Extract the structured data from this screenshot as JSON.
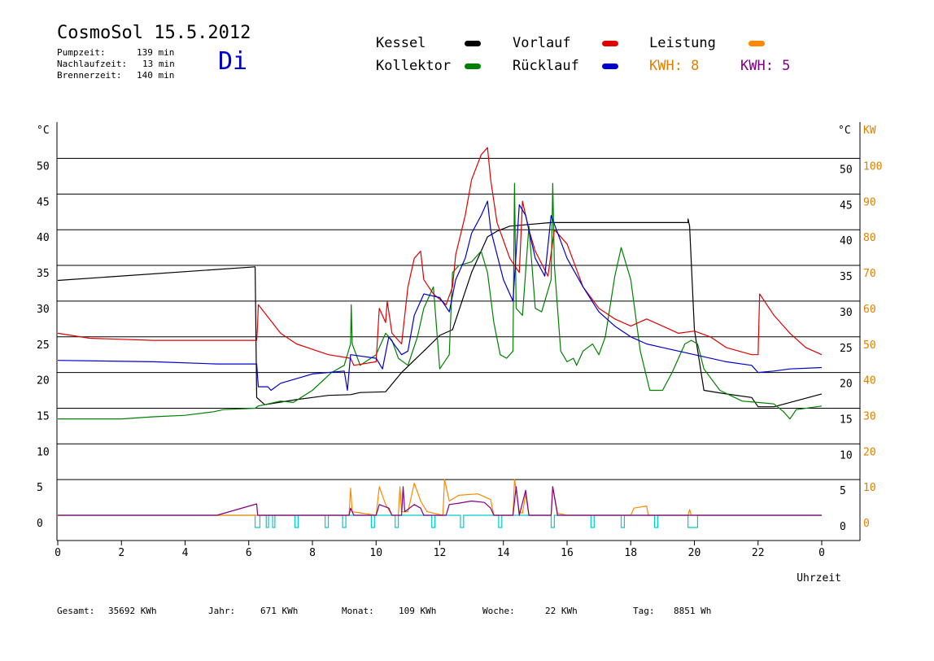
{
  "header": {
    "title": "CosmoSol 15.5.2012",
    "pump_label": "Pumpzeit:",
    "pump_value": "139 min",
    "run_label": "Nachlaufzeit:",
    "run_value": "13 min",
    "burner_label": "Brennerzeit:",
    "burner_value": "140 min",
    "day": "Di"
  },
  "legend": {
    "kessel": "Kessel",
    "kollektor": "Kollektor",
    "vorlauf": "Vorlauf",
    "ruecklauf": "Rücklauf",
    "leistung": "Leistung",
    "kwh1": "KWH: 8",
    "kwh2": "KWH: 5"
  },
  "footer": {
    "gesamt_label": "Gesamt:",
    "gesamt_value": "35692 KWh",
    "jahr_label": "Jahr:",
    "jahr_value": "671 KWh",
    "monat_label": "Monat:",
    "monat_value": "109 KWh",
    "woche_label": "Woche:",
    "woche_value": "22 KWh",
    "tag_label": "Tag:",
    "tag_value": "8851 Wh"
  },
  "chart_data": {
    "type": "line",
    "xlabel": "Uhrzeit",
    "ylabel_left": "°C",
    "ylabel_right_1": "°C",
    "ylabel_right_2": "KW",
    "xlim": [
      0,
      24
    ],
    "ylim": [
      -3.5,
      55
    ],
    "grid": true,
    "x_ticks": [
      "0",
      "2",
      "4",
      "6",
      "8",
      "10",
      "12",
      "14",
      "16",
      "18",
      "20",
      "22",
      "0"
    ],
    "y_ticks": [
      0,
      5,
      10,
      15,
      20,
      25,
      30,
      35,
      40,
      45,
      50
    ],
    "y_ticks_kw": [
      0,
      10,
      20,
      30,
      40,
      50,
      60,
      70,
      80,
      90,
      100
    ],
    "colors": {
      "kessel": "#000000",
      "kollektor": "#008000",
      "vorlauf": "#e00000",
      "ruecklauf": "#0000cc",
      "leistung": "#ff8800",
      "kwh2": "#800080",
      "pump": "#00cccc"
    },
    "series": [
      {
        "name": "Kessel",
        "color_key": "kessel",
        "points": [
          [
            0,
            32.9
          ],
          [
            6.2,
            34.8
          ],
          [
            6.25,
            16.5
          ],
          [
            6.5,
            15.5
          ],
          [
            7.5,
            16.2
          ],
          [
            8.5,
            16.8
          ],
          [
            9.2,
            16.9
          ],
          [
            9.5,
            17.2
          ],
          [
            10.3,
            17.3
          ],
          [
            10.8,
            20
          ],
          [
            11.5,
            23
          ],
          [
            12,
            25.2
          ],
          [
            12.4,
            26
          ],
          [
            13,
            34
          ],
          [
            13.5,
            39
          ],
          [
            13.8,
            39.8
          ],
          [
            14.2,
            40.5
          ],
          [
            15.5,
            41
          ],
          [
            19.8,
            41
          ],
          [
            19.8,
            41.5
          ],
          [
            19.85,
            40.5
          ],
          [
            20,
            26
          ],
          [
            20.3,
            17.5
          ],
          [
            21,
            17
          ],
          [
            21.8,
            16.5
          ],
          [
            22,
            15.2
          ],
          [
            22.5,
            15.2
          ],
          [
            23,
            15.8
          ],
          [
            24,
            17
          ]
        ]
      },
      {
        "name": "Kollektor",
        "color_key": "kollektor",
        "points": [
          [
            0,
            13.5
          ],
          [
            2,
            13.5
          ],
          [
            3,
            13.8
          ],
          [
            4,
            14
          ],
          [
            4.9,
            14.5
          ],
          [
            5.2,
            14.8
          ],
          [
            6.2,
            15
          ],
          [
            6.3,
            15.3
          ],
          [
            7,
            16
          ],
          [
            7.4,
            15.8
          ],
          [
            8,
            17.5
          ],
          [
            8.6,
            20
          ],
          [
            9,
            21
          ],
          [
            9.2,
            24
          ],
          [
            9.22,
            29.5
          ],
          [
            9.25,
            24
          ],
          [
            9.5,
            21
          ],
          [
            10,
            22.5
          ],
          [
            10.1,
            23.5
          ],
          [
            10.3,
            25.5
          ],
          [
            10.5,
            24.5
          ],
          [
            10.7,
            22
          ],
          [
            11,
            21
          ],
          [
            11.3,
            25
          ],
          [
            11.5,
            29
          ],
          [
            11.8,
            32
          ],
          [
            12,
            20.5
          ],
          [
            12.3,
            22.5
          ],
          [
            12.4,
            34
          ],
          [
            12.6,
            35
          ],
          [
            13,
            35.5
          ],
          [
            13.3,
            37
          ],
          [
            13.5,
            34
          ],
          [
            13.7,
            27
          ],
          [
            13.9,
            22.5
          ],
          [
            14.1,
            22
          ],
          [
            14.3,
            23
          ],
          [
            14.35,
            46.5
          ],
          [
            14.4,
            29
          ],
          [
            14.6,
            28
          ],
          [
            14.8,
            40.5
          ],
          [
            15.0,
            29
          ],
          [
            15.2,
            28.5
          ],
          [
            15.5,
            33
          ],
          [
            15.55,
            46.5
          ],
          [
            15.6,
            35
          ],
          [
            15.8,
            23
          ],
          [
            16,
            21.5
          ],
          [
            16.2,
            22
          ],
          [
            16.3,
            21
          ],
          [
            16.5,
            23
          ],
          [
            16.8,
            24
          ],
          [
            17,
            22.5
          ],
          [
            17.2,
            25
          ],
          [
            17.5,
            33.5
          ],
          [
            17.7,
            37.5
          ],
          [
            18,
            33
          ],
          [
            18.3,
            23
          ],
          [
            18.6,
            17.5
          ],
          [
            19,
            17.5
          ],
          [
            19.3,
            20
          ],
          [
            19.7,
            24
          ],
          [
            19.9,
            24.5
          ],
          [
            20.1,
            24
          ],
          [
            20.3,
            20.5
          ],
          [
            20.8,
            17.5
          ],
          [
            21.5,
            16
          ],
          [
            22,
            15.8
          ],
          [
            22.5,
            15.6
          ],
          [
            22.8,
            14.5
          ],
          [
            23,
            13.5
          ],
          [
            23.2,
            14.8
          ],
          [
            24,
            15.3
          ]
        ]
      },
      {
        "name": "Vorlauf",
        "color_key": "vorlauf",
        "points": [
          [
            0,
            25.5
          ],
          [
            1,
            24.8
          ],
          [
            3,
            24.5
          ],
          [
            6.25,
            24.5
          ],
          [
            6.27,
            26
          ],
          [
            6.3,
            29.5
          ],
          [
            7,
            25.5
          ],
          [
            7.5,
            24
          ],
          [
            8.5,
            22.5
          ],
          [
            9.2,
            22
          ],
          [
            9.3,
            21
          ],
          [
            10,
            21.5
          ],
          [
            10.1,
            29
          ],
          [
            10.3,
            27
          ],
          [
            10.35,
            30
          ],
          [
            10.5,
            25.5
          ],
          [
            10.8,
            24
          ],
          [
            11,
            32
          ],
          [
            11.2,
            36
          ],
          [
            11.4,
            37
          ],
          [
            11.5,
            33
          ],
          [
            11.8,
            31
          ],
          [
            12.2,
            29.5
          ],
          [
            12.4,
            32
          ],
          [
            12.5,
            36.5
          ],
          [
            12.8,
            42
          ],
          [
            13,
            47
          ],
          [
            13.3,
            50.5
          ],
          [
            13.5,
            51.5
          ],
          [
            13.6,
            47
          ],
          [
            13.8,
            41
          ],
          [
            14.2,
            36
          ],
          [
            14.5,
            34
          ],
          [
            14.6,
            44
          ],
          [
            14.8,
            40
          ],
          [
            15,
            37
          ],
          [
            15.4,
            33.5
          ],
          [
            15.6,
            40
          ],
          [
            16,
            38
          ],
          [
            16.5,
            32
          ],
          [
            17,
            29
          ],
          [
            17.5,
            27.5
          ],
          [
            18,
            26.5
          ],
          [
            18.5,
            27.5
          ],
          [
            19,
            26.5
          ],
          [
            19.5,
            25.5
          ],
          [
            20,
            25.8
          ],
          [
            20.5,
            25
          ],
          [
            21,
            23.5
          ],
          [
            21.8,
            22.5
          ],
          [
            22,
            22.5
          ],
          [
            22.05,
            31
          ],
          [
            22.5,
            28
          ],
          [
            23,
            25.5
          ],
          [
            23.5,
            23.5
          ],
          [
            24,
            22.5
          ]
        ]
      },
      {
        "name": "Rücklauf",
        "color_key": "ruecklauf",
        "points": [
          [
            0,
            21.7
          ],
          [
            3,
            21.5
          ],
          [
            5,
            21.2
          ],
          [
            6.25,
            21.2
          ],
          [
            6.3,
            18
          ],
          [
            6.6,
            18
          ],
          [
            6.7,
            17.5
          ],
          [
            7,
            18.5
          ],
          [
            8,
            19.8
          ],
          [
            9,
            20.2
          ],
          [
            9.1,
            17.5
          ],
          [
            9.2,
            22.5
          ],
          [
            10,
            22
          ],
          [
            10.2,
            20.5
          ],
          [
            10.4,
            25
          ],
          [
            10.8,
            22.5
          ],
          [
            11,
            23
          ],
          [
            11.2,
            28
          ],
          [
            11.5,
            31
          ],
          [
            12,
            30.5
          ],
          [
            12.3,
            28.5
          ],
          [
            12.5,
            33
          ],
          [
            12.8,
            36
          ],
          [
            13,
            39.5
          ],
          [
            13.3,
            42
          ],
          [
            13.5,
            44
          ],
          [
            13.6,
            40
          ],
          [
            14,
            33
          ],
          [
            14.3,
            30
          ],
          [
            14.5,
            43.5
          ],
          [
            14.7,
            42
          ],
          [
            15,
            36
          ],
          [
            15.3,
            33.5
          ],
          [
            15.5,
            42
          ],
          [
            16,
            36
          ],
          [
            16.5,
            32
          ],
          [
            17,
            28.5
          ],
          [
            17.5,
            26.5
          ],
          [
            18,
            25
          ],
          [
            18.5,
            24
          ],
          [
            19,
            23.5
          ],
          [
            20,
            22.5
          ],
          [
            21,
            21.5
          ],
          [
            21.8,
            21
          ],
          [
            22,
            20
          ],
          [
            22.5,
            20.2
          ],
          [
            23,
            20.5
          ],
          [
            24,
            20.7
          ]
        ]
      },
      {
        "name": "Leistung",
        "color_key": "leistung",
        "points": [
          [
            0,
            0
          ],
          [
            9.15,
            0
          ],
          [
            9.2,
            3.8
          ],
          [
            9.25,
            0.5
          ],
          [
            10,
            0
          ],
          [
            10.1,
            4
          ],
          [
            10.3,
            1.5
          ],
          [
            10.5,
            0
          ],
          [
            10.7,
            0
          ],
          [
            10.75,
            4
          ],
          [
            10.8,
            0.5
          ],
          [
            11,
            0.5
          ],
          [
            11.1,
            2.5
          ],
          [
            11.2,
            4.5
          ],
          [
            11.4,
            2
          ],
          [
            11.6,
            0.5
          ],
          [
            12.1,
            0
          ],
          [
            12.15,
            5
          ],
          [
            12.3,
            2
          ],
          [
            12.6,
            2.8
          ],
          [
            13.2,
            3
          ],
          [
            13.6,
            2.2
          ],
          [
            13.7,
            0
          ],
          [
            14.3,
            0
          ],
          [
            14.35,
            5
          ],
          [
            14.5,
            0.5
          ],
          [
            14.6,
            0.3
          ],
          [
            14.7,
            3
          ],
          [
            14.8,
            0
          ],
          [
            15.5,
            0
          ],
          [
            15.55,
            4
          ],
          [
            15.7,
            0.3
          ],
          [
            16,
            0
          ],
          [
            18.0,
            0
          ],
          [
            18.1,
            1
          ],
          [
            18.5,
            1.3
          ],
          [
            18.55,
            0
          ],
          [
            19.8,
            0
          ],
          [
            19.85,
            0.8
          ],
          [
            19.9,
            0
          ],
          [
            24,
            0
          ]
        ]
      },
      {
        "name": "KWH 5",
        "color_key": "kwh2",
        "points": [
          [
            0,
            0
          ],
          [
            5,
            0
          ],
          [
            6.25,
            1.6
          ],
          [
            6.28,
            0
          ],
          [
            9.15,
            0
          ],
          [
            9.2,
            1
          ],
          [
            9.3,
            0
          ],
          [
            10,
            0
          ],
          [
            10.1,
            1.5
          ],
          [
            10.4,
            1
          ],
          [
            10.5,
            0
          ],
          [
            10.8,
            0
          ],
          [
            10.85,
            4
          ],
          [
            10.9,
            0.5
          ],
          [
            11.2,
            1.5
          ],
          [
            11.4,
            1
          ],
          [
            11.5,
            0
          ],
          [
            12.2,
            0
          ],
          [
            12.3,
            1.5
          ],
          [
            12.6,
            1.7
          ],
          [
            13,
            2
          ],
          [
            13.4,
            1.8
          ],
          [
            13.6,
            1
          ],
          [
            13.7,
            0
          ],
          [
            14.3,
            0
          ],
          [
            14.4,
            4
          ],
          [
            14.5,
            0
          ],
          [
            14.7,
            3.5
          ],
          [
            14.8,
            0
          ],
          [
            15.5,
            0
          ],
          [
            15.55,
            4
          ],
          [
            15.7,
            0
          ],
          [
            24,
            0
          ]
        ]
      }
    ],
    "pump_pulses": [
      [
        6.2,
        6.35
      ],
      [
        6.55,
        6.62
      ],
      [
        6.75,
        6.82
      ],
      [
        7.45,
        7.55
      ],
      [
        8.4,
        8.5
      ],
      [
        8.95,
        9.05
      ],
      [
        9.85,
        9.95
      ],
      [
        10.6,
        10.7
      ],
      [
        11.75,
        11.85
      ],
      [
        12.65,
        12.75
      ],
      [
        13.85,
        13.95
      ],
      [
        15.5,
        15.6
      ],
      [
        16.75,
        16.85
      ],
      [
        17.7,
        17.8
      ],
      [
        18.75,
        18.85
      ],
      [
        19.8,
        20.1
      ]
    ]
  }
}
